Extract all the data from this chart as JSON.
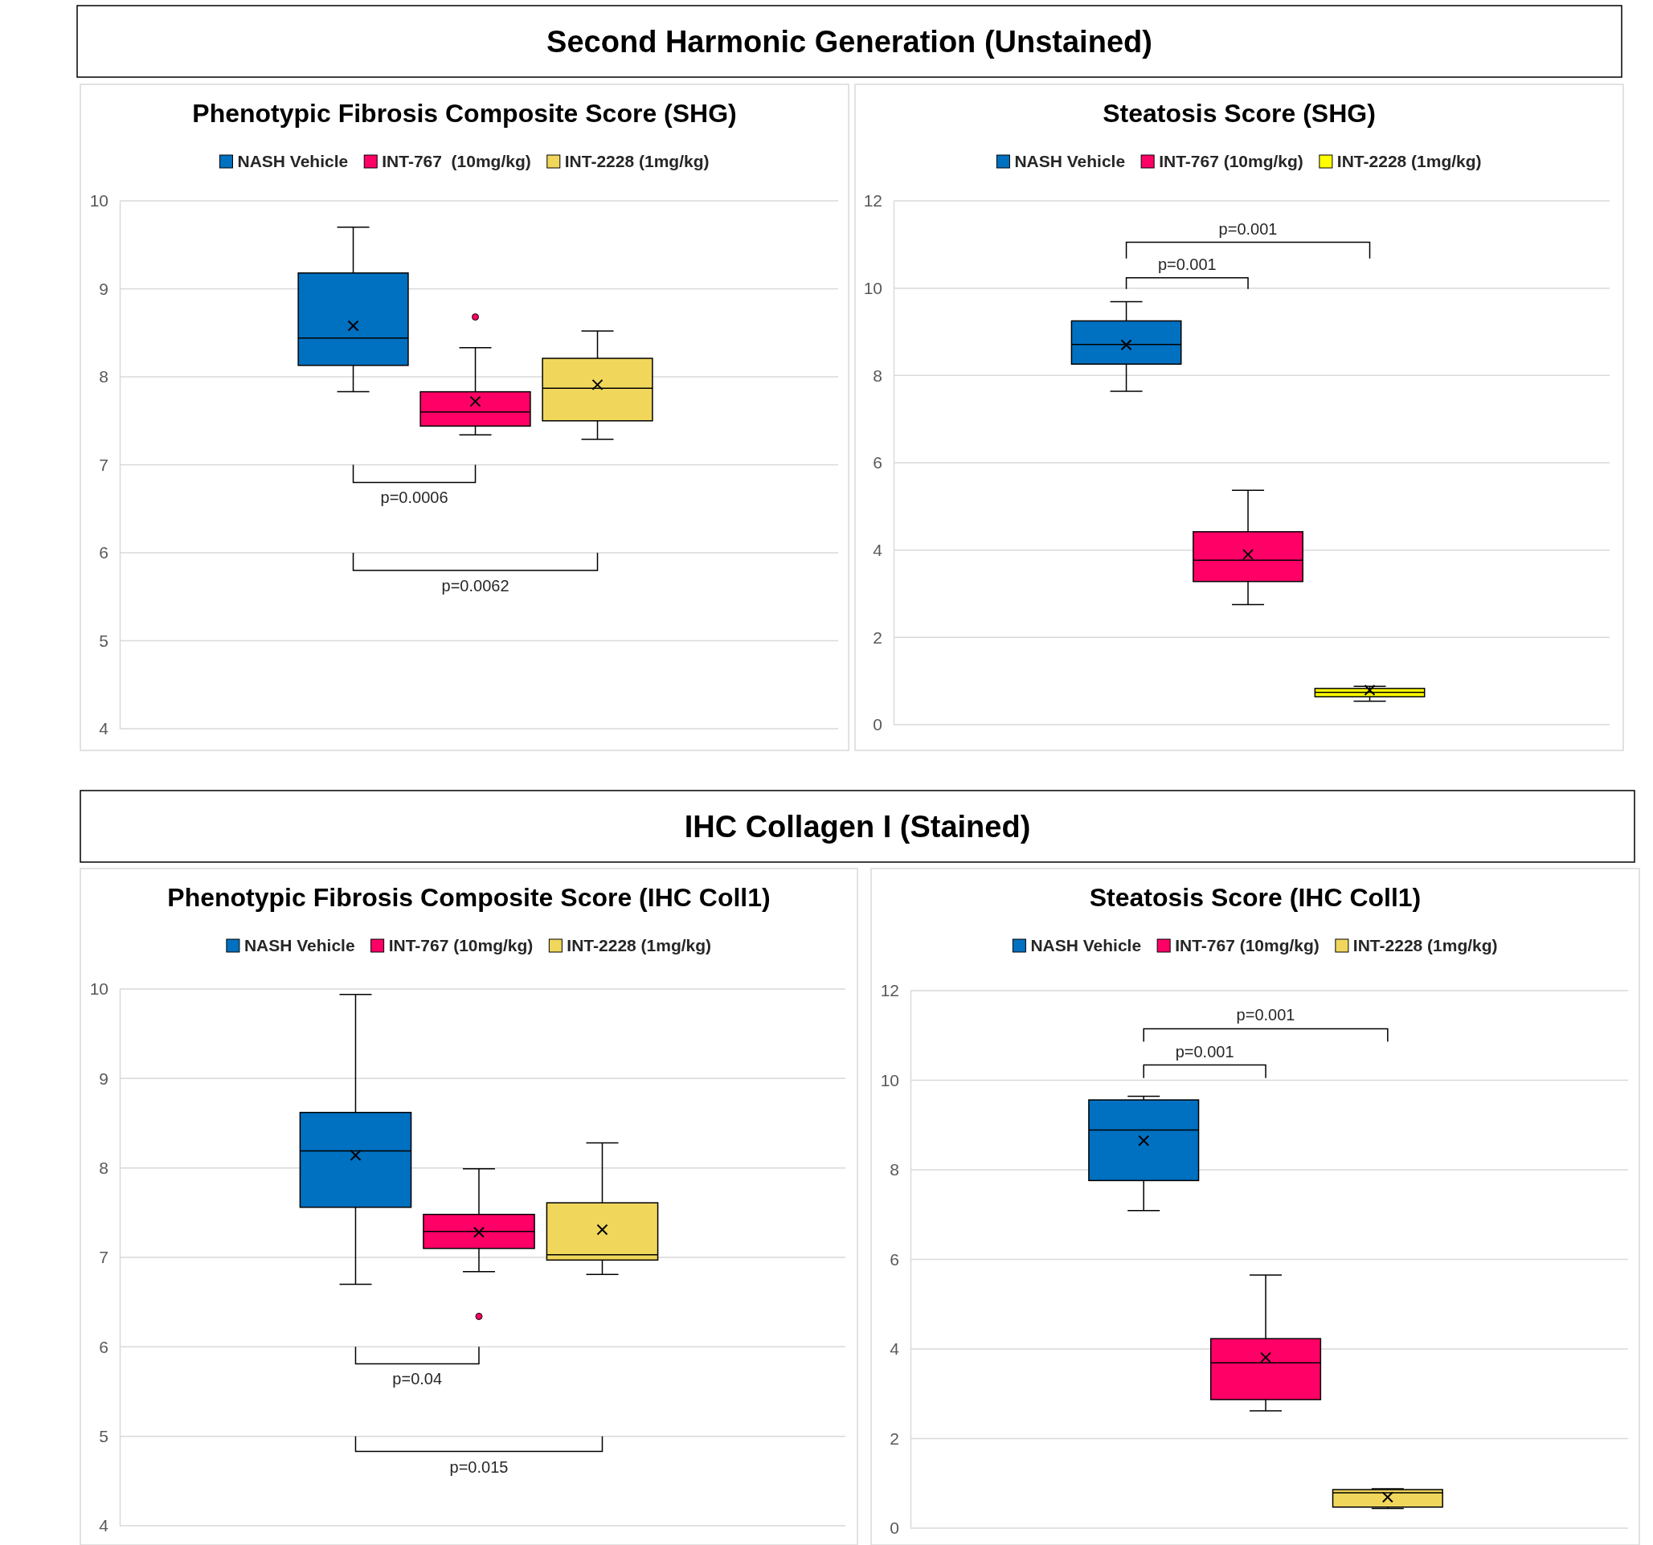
{
  "chart_data": [
    {
      "type": "box",
      "subtitle": "Second Harmonic Generation (Unstained)",
      "title": "Phenotypic Fibrosis Composite Score (SHG)",
      "categories": [
        null
      ],
      "ylim": [
        4,
        10
      ],
      "yticks": [
        4,
        5,
        6,
        7,
        8,
        9,
        10
      ],
      "grid": "y",
      "legend": "top",
      "tick_labels": "y",
      "series": [
        {
          "name": "NASH Vehicle",
          "color": "#0070c0",
          "boxes": [
            {
              "low": 7.83,
              "q1": 8.13,
              "median": 8.44,
              "q3": 9.18,
              "high": 9.7,
              "mean": 8.58
            }
          ]
        },
        {
          "name": "INT-767  (10mg/kg)",
          "color": "#ff0066",
          "boxes": [
            {
              "low": 7.34,
              "q1": 7.44,
              "median": 7.6,
              "q3": 7.83,
              "high": 8.33,
              "mean": 7.72,
              "outliers": [
                8.68
              ]
            }
          ]
        },
        {
          "name": "INT-2228 (1mg/kg)",
          "color": "#f0d75c",
          "boxes": [
            {
              "low": 7.29,
              "q1": 7.5,
              "median": 7.87,
              "q3": 8.21,
              "high": 8.52,
              "mean": 7.91
            }
          ]
        }
      ],
      "annotations": [
        "p=0.0006",
        "p=0.0062"
      ]
    },
    {
      "type": "box",
      "title": "Steatosis Score (SHG)",
      "categories": [
        null
      ],
      "ylim": [
        0,
        12
      ],
      "yticks": [
        0,
        2,
        4,
        6,
        8,
        10,
        12
      ],
      "grid": "y",
      "legend": "top",
      "tick_labels": "y",
      "series": [
        {
          "name": "NASH Vehicle",
          "color": "#0070c0",
          "boxes": [
            {
              "low": 7.64,
              "q1": 8.26,
              "median": 8.71,
              "q3": 9.25,
              "high": 9.69,
              "mean": 8.7
            }
          ]
        },
        {
          "name": "INT-767 (10mg/kg)",
          "color": "#ff0066",
          "boxes": [
            {
              "low": 2.75,
              "q1": 3.28,
              "median": 3.77,
              "q3": 4.42,
              "high": 5.37,
              "mean": 3.9
            }
          ]
        },
        {
          "name": "INT-2228 (1mg/kg)",
          "color": "#ffff00",
          "boxes": [
            {
              "low": 0.54,
              "q1": 0.64,
              "median": 0.74,
              "q3": 0.83,
              "high": 0.88,
              "mean": 0.79
            }
          ]
        }
      ],
      "annotations": [
        "p=0.001",
        "p=0.001"
      ]
    },
    {
      "type": "box",
      "subtitle": "IHC Collagen I (Stained)",
      "title": "Phenotypic Fibrosis Composite Score (IHC Coll1)",
      "categories": [
        null
      ],
      "ylim": [
        4,
        10
      ],
      "yticks": [
        4,
        5,
        6,
        7,
        8,
        9,
        10
      ],
      "grid": "y",
      "legend": "top",
      "tick_labels": "y",
      "series": [
        {
          "name": "NASH Vehicle",
          "color": "#0070c0",
          "boxes": [
            {
              "low": 6.7,
              "q1": 7.56,
              "median": 8.19,
              "q3": 8.62,
              "high": 9.94,
              "mean": 8.14
            }
          ]
        },
        {
          "name": "INT-767 (10mg/kg)",
          "color": "#ff0066",
          "boxes": [
            {
              "low": 6.84,
              "q1": 7.1,
              "median": 7.29,
              "q3": 7.48,
              "high": 7.99,
              "mean": 7.28,
              "outliers": [
                6.34
              ]
            }
          ]
        },
        {
          "name": "INT-2228 (1mg/kg)",
          "color": "#f0d75c",
          "boxes": [
            {
              "low": 6.81,
              "q1": 6.97,
              "median": 7.03,
              "q3": 7.61,
              "high": 8.28,
              "mean": 7.31
            }
          ]
        }
      ],
      "annotations": [
        "p=0.04",
        "p=0.015"
      ]
    },
    {
      "type": "box",
      "title": "Steatosis Score (IHC Coll1)",
      "categories": [
        null
      ],
      "ylim": [
        0,
        12
      ],
      "yticks": [
        0,
        2,
        4,
        6,
        8,
        10,
        12
      ],
      "grid": "y",
      "legend": "top",
      "tick_labels": "y",
      "series": [
        {
          "name": "NASH Vehicle",
          "color": "#0070c0",
          "boxes": [
            {
              "low": 7.09,
              "q1": 7.76,
              "median": 8.89,
              "q3": 9.56,
              "high": 9.64,
              "mean": 8.65
            }
          ]
        },
        {
          "name": "INT-767 (10mg/kg)",
          "color": "#ff0066",
          "boxes": [
            {
              "low": 2.62,
              "q1": 2.87,
              "median": 3.69,
              "q3": 4.23,
              "high": 5.65,
              "mean": 3.81
            }
          ]
        },
        {
          "name": "INT-2228 (1mg/kg)",
          "color": "#f0d75c",
          "boxes": [
            {
              "low": 0.44,
              "q1": 0.47,
              "median": 0.79,
              "q3": 0.86,
              "high": 0.88,
              "mean": 0.69
            }
          ]
        }
      ],
      "annotations": [
        "p=0.001",
        "p=0.001"
      ]
    }
  ]
}
